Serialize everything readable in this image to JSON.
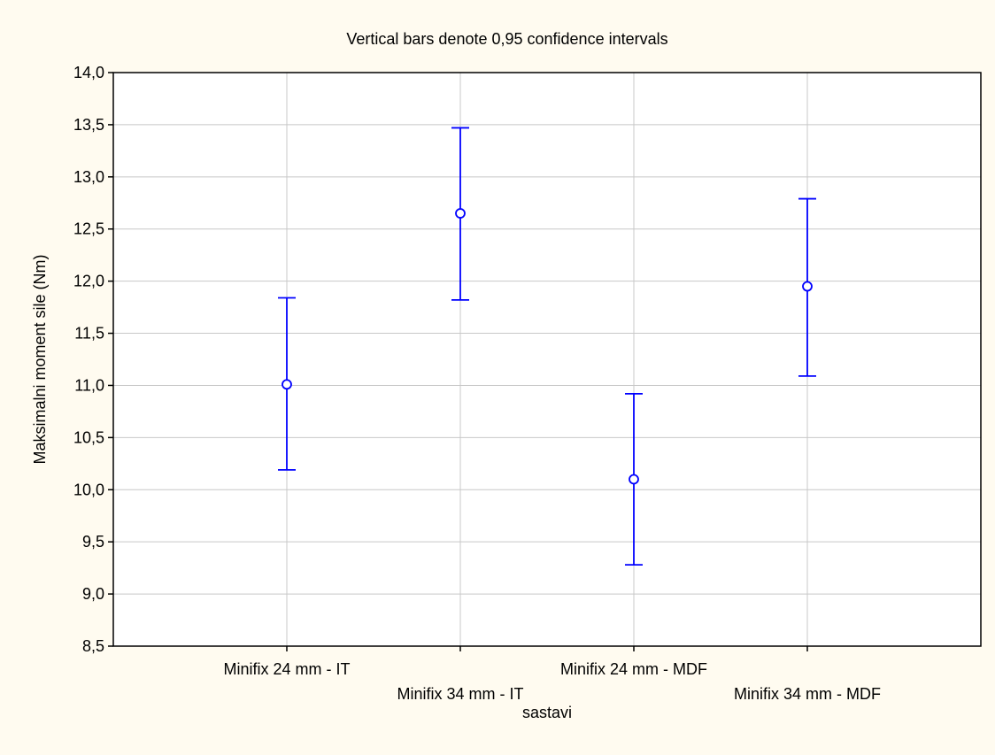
{
  "chart_data": {
    "type": "scatter",
    "subtitle": "Vertical bars denote 0,95 confidence intervals",
    "xlabel": "sastavi",
    "ylabel": "Maksimalni moment sile (Nm)",
    "ylim": [
      8.5,
      14.0
    ],
    "y_tick_step": 0.5,
    "decimal_separator": ",",
    "grid": true,
    "legend": "none",
    "categories": [
      "Minifix 24 mm - IT",
      "Minifix 34 mm - IT",
      "Minifix 24 mm - MDF",
      "Minifix 34 mm - MDF"
    ],
    "series": [
      {
        "means": [
          11.01,
          12.65,
          10.1,
          11.95
        ],
        "ci_lower": [
          10.19,
          11.82,
          9.28,
          11.09
        ],
        "ci_upper": [
          11.84,
          13.47,
          10.92,
          12.79
        ]
      }
    ],
    "colors": {
      "series": "#0000ff",
      "background": "#fffbf0",
      "plot_area": "#ffffff",
      "grid": "#c8c8c8",
      "axis": "#000000"
    }
  }
}
